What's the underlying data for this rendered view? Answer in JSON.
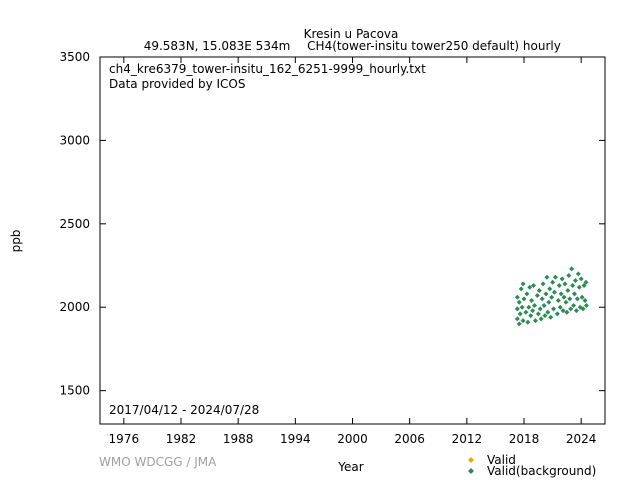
{
  "header": {
    "station": "Kresin u Pacova",
    "location": "49.583N, 15.083E 534m",
    "dataset": "CH4(tower-insitu tower250 default) hourly"
  },
  "plot_text": {
    "filename": "ch4_kre6379_tower-insitu_162_6251-9999_hourly.txt",
    "provider": "Data provided by ICOS",
    "date_range": "2017/04/12 - 2024/07/28"
  },
  "credit": "WMO WDCGG / JMA",
  "colors": {
    "valid": "#e0b000",
    "valid_background": "#2e8b57"
  },
  "chart_data": {
    "type": "scatter",
    "xlabel": "Year",
    "ylabel": "ppb",
    "xlim": [
      1973.5,
      2026.5
    ],
    "ylim": [
      1300,
      3500
    ],
    "x_ticks": [
      1976,
      1982,
      1988,
      1994,
      2000,
      2006,
      2012,
      2018,
      2024
    ],
    "x_tick_labels": [
      "1976",
      "1982",
      "1988",
      "1994",
      "2000",
      "2006",
      "2012",
      "2018",
      "2024"
    ],
    "y_ticks": [
      1500,
      2000,
      2500,
      3000,
      3500
    ],
    "y_tick_labels": [
      "1500",
      "2000",
      "2500",
      "3000",
      "3500"
    ],
    "grid": false,
    "legend_position": "bottom-right",
    "series": [
      {
        "name": "Valid",
        "marker": "diamond",
        "color": "#e0b000",
        "points": []
      },
      {
        "name": "Valid(background)",
        "marker": "diamond",
        "color": "#2e8b57",
        "points": [
          [
            2017.3,
            1990
          ],
          [
            2017.3,
            1930
          ],
          [
            2017.3,
            2060
          ],
          [
            2017.5,
            1900
          ],
          [
            2017.5,
            2030
          ],
          [
            2017.6,
            1960
          ],
          [
            2017.7,
            2110
          ],
          [
            2017.8,
            2000
          ],
          [
            2017.9,
            2140
          ],
          [
            2017.9,
            1920
          ],
          [
            2018.0,
            2050
          ],
          [
            2018.2,
            1970
          ],
          [
            2018.3,
            2080
          ],
          [
            2018.4,
            1910
          ],
          [
            2018.5,
            2000
          ],
          [
            2018.6,
            2120
          ],
          [
            2018.7,
            1950
          ],
          [
            2018.8,
            2040
          ],
          [
            2018.9,
            1980
          ],
          [
            2019.0,
            2130
          ],
          [
            2019.1,
            2010
          ],
          [
            2019.2,
            1920
          ],
          [
            2019.4,
            2070
          ],
          [
            2019.5,
            1960
          ],
          [
            2019.6,
            2100
          ],
          [
            2019.7,
            1990
          ],
          [
            2019.8,
            1930
          ],
          [
            2019.9,
            2050
          ],
          [
            2020.0,
            2140
          ],
          [
            2020.1,
            2010
          ],
          [
            2020.2,
            1950
          ],
          [
            2020.3,
            2080
          ],
          [
            2020.4,
            2180
          ],
          [
            2020.5,
            1970
          ],
          [
            2020.6,
            2030
          ],
          [
            2020.7,
            2110
          ],
          [
            2020.8,
            1940
          ],
          [
            2020.9,
            2060
          ],
          [
            2021.0,
            2150
          ],
          [
            2021.1,
            1990
          ],
          [
            2021.2,
            2090
          ],
          [
            2021.3,
            2180
          ],
          [
            2021.5,
            1960
          ],
          [
            2021.6,
            2040
          ],
          [
            2021.7,
            2130
          ],
          [
            2021.8,
            2000
          ],
          [
            2021.9,
            2080
          ],
          [
            2022.0,
            2170
          ],
          [
            2022.1,
            1980
          ],
          [
            2022.2,
            2060
          ],
          [
            2022.3,
            2140
          ],
          [
            2022.4,
            2030
          ],
          [
            2022.5,
            1970
          ],
          [
            2022.6,
            2100
          ],
          [
            2022.7,
            2190
          ],
          [
            2022.8,
            2050
          ],
          [
            2022.9,
            1990
          ],
          [
            2023.0,
            2230
          ],
          [
            2023.1,
            2130
          ],
          [
            2023.2,
            2010
          ],
          [
            2023.3,
            2080
          ],
          [
            2023.4,
            2160
          ],
          [
            2023.5,
            1980
          ],
          [
            2023.6,
            2050
          ],
          [
            2023.7,
            2200
          ],
          [
            2023.8,
            2120
          ],
          [
            2023.9,
            2000
          ],
          [
            2024.0,
            2170
          ],
          [
            2024.1,
            2060
          ],
          [
            2024.2,
            1990
          ],
          [
            2024.3,
            2130
          ],
          [
            2024.4,
            2040
          ],
          [
            2024.5,
            2150
          ],
          [
            2024.55,
            2010
          ]
        ]
      }
    ]
  }
}
